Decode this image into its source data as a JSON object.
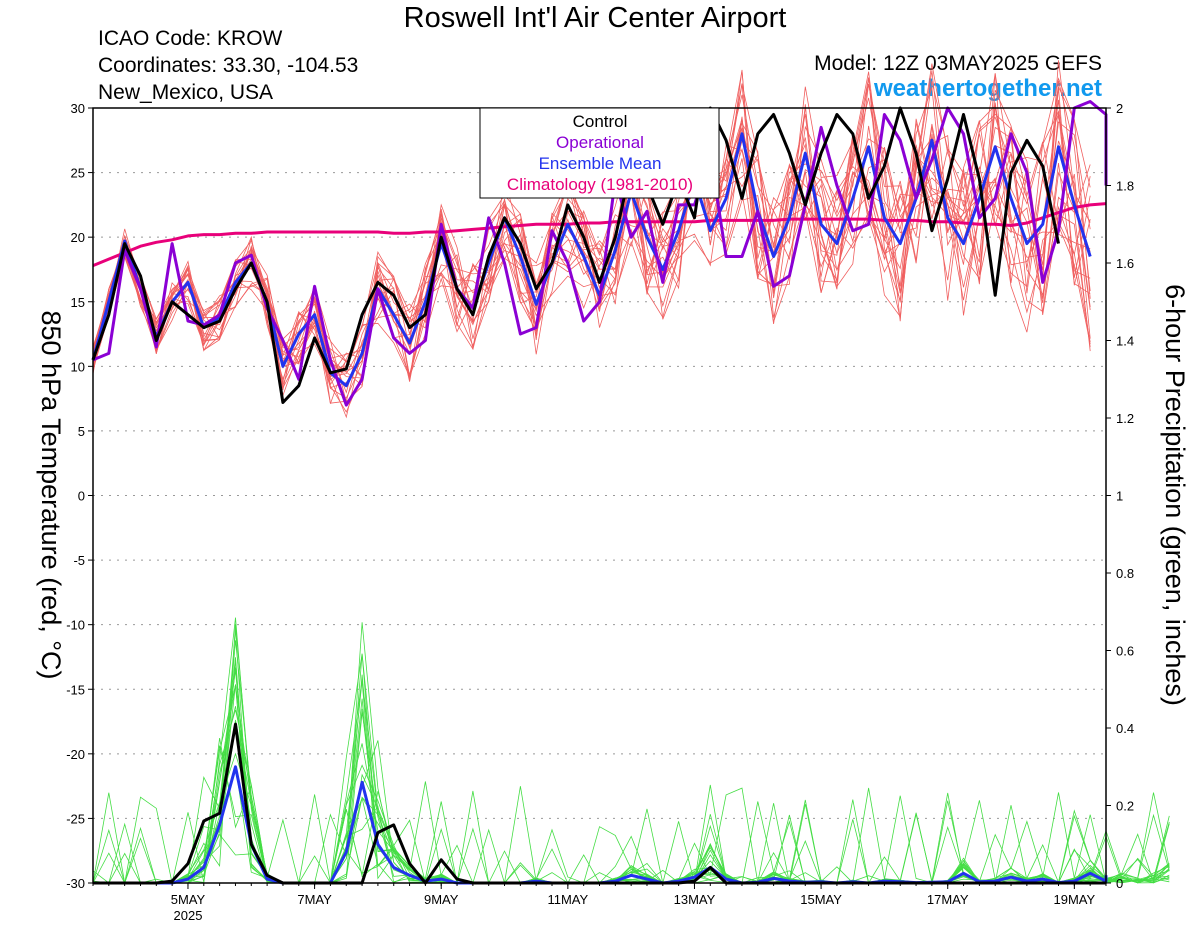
{
  "header": {
    "title": "Roswell Int'l Air Center Airport",
    "icao": "ICAO Code: KROW",
    "coordinates": "Coordinates: 33.30, -104.53",
    "region": "New_Mexico, USA",
    "model": "Model: 12Z 03MAY2025 GEFS",
    "site": "weathertogether.net"
  },
  "chart_data": {
    "type": "line",
    "title": "Roswell Int'l Air Center Airport",
    "ylabel": "850 hPa Temperature (red, °C)",
    "y2label": "6-hour Precipitation (green, inches)",
    "ylim": [
      -30,
      30
    ],
    "y2lim": [
      0,
      2
    ],
    "yticks": [
      30,
      25,
      20,
      15,
      10,
      5,
      0,
      -5,
      -10,
      -15,
      -20,
      -25,
      -30
    ],
    "y2ticks": [
      "2",
      "1.8",
      "1.6",
      "1.4",
      "1.2",
      "1",
      "0.8",
      "0.6",
      "0.4",
      "0.2",
      "0"
    ],
    "xlim": [
      3.5,
      19.5
    ],
    "xticks": [
      {
        "x": 5,
        "label": "5MAY",
        "sublabel": "2025"
      },
      {
        "x": 7,
        "label": "7MAY",
        "sublabel": ""
      },
      {
        "x": 9,
        "label": "9MAY",
        "sublabel": ""
      },
      {
        "x": 11,
        "label": "11MAY",
        "sublabel": ""
      },
      {
        "x": 13,
        "label": "13MAY",
        "sublabel": ""
      },
      {
        "x": 15,
        "label": "15MAY",
        "sublabel": ""
      },
      {
        "x": 17,
        "label": "17MAY",
        "sublabel": ""
      },
      {
        "x": 19,
        "label": "19MAY",
        "sublabel": ""
      }
    ],
    "grid": "horizontal dotted",
    "legend_position": "top-center",
    "legend": [
      {
        "label": "Control",
        "color": "#000000"
      },
      {
        "label": "Operational",
        "color": "#8a00d4"
      },
      {
        "label": "Ensemble Mean",
        "color": "#2233ee"
      },
      {
        "label": "Climatology (1981-2010)",
        "color": "#e8007a"
      }
    ],
    "series": [
      {
        "name": "Control",
        "axis": "temp",
        "color": "#000000",
        "width": 3,
        "values": [
          10.5,
          14,
          19.5,
          17,
          12,
          15,
          14,
          13,
          13.5,
          16,
          18,
          15,
          7.2,
          8.5,
          12.2,
          9.5,
          9.8,
          14,
          16.5,
          15.5,
          13,
          14,
          20,
          16,
          14,
          18.5,
          21.5,
          19.5,
          16,
          18,
          22.5,
          20,
          16.5,
          20,
          25.5,
          24,
          21,
          24.5,
          21.5,
          30,
          27.5,
          23,
          28,
          29.5,
          26.5,
          22.5,
          26.5,
          29.5,
          28,
          23,
          25.5,
          30,
          26.5,
          20.5,
          24.5,
          29.5,
          24.5,
          15.5,
          25,
          27.5,
          25.5,
          19.5
        ]
      },
      {
        "name": "Operational",
        "axis": "temp",
        "color": "#8a00d4",
        "width": 3,
        "values": [
          10.5,
          11,
          19,
          16,
          11.5,
          19.5,
          13.5,
          13.2,
          14,
          18,
          18.6,
          14.5,
          12,
          9,
          16.2,
          10.5,
          7,
          9,
          16,
          12.2,
          11,
          12,
          21,
          16,
          14.5,
          21.5,
          18,
          12.5,
          13,
          20.5,
          18,
          13.5,
          15,
          24.5,
          20,
          22,
          16.5,
          22.5,
          22.5,
          26.5,
          18.5,
          18.5,
          22,
          16.2,
          17,
          22.5,
          28.5,
          24,
          20.5,
          21,
          29.5,
          27.5,
          23,
          26,
          30,
          28,
          21.5,
          23,
          28,
          25,
          16.5,
          20.5,
          30,
          30.5,
          29.5,
          24
        ]
      },
      {
        "name": "Ensemble Mean",
        "axis": "temp",
        "color": "#2233ee",
        "width": 3,
        "values": [
          10.5,
          15,
          19.7,
          16,
          12.3,
          15,
          16.5,
          13,
          13.8,
          16.5,
          18,
          15,
          10,
          12.5,
          14,
          9.5,
          8.5,
          11,
          16,
          14,
          11.8,
          15,
          19.5,
          16,
          14.5,
          18,
          21.5,
          18.5,
          14.8,
          18,
          21,
          18.5,
          15.5,
          19,
          23.5,
          20,
          17.5,
          20.5,
          24.5,
          20.5,
          23,
          28,
          22,
          18.5,
          21.5,
          26.5,
          21,
          19.5,
          23,
          27,
          21.5,
          19.5,
          23,
          27.5,
          21.5,
          19.5,
          23,
          27,
          23,
          19.5,
          21,
          27,
          22.5,
          18.5
        ]
      },
      {
        "name": "Climatology (1981-2010)",
        "axis": "temp",
        "color": "#e8007a",
        "width": 3,
        "x_start": 3.5,
        "x_step": 0.25,
        "values": [
          17.8,
          18.3,
          18.8,
          19.3,
          19.6,
          19.8,
          20.1,
          20.2,
          20.2,
          20.3,
          20.3,
          20.4,
          20.4,
          20.4,
          20.4,
          20.4,
          20.4,
          20.4,
          20.4,
          20.3,
          20.3,
          20.4,
          20.4,
          20.5,
          20.6,
          20.7,
          20.8,
          20.9,
          21.0,
          21.0,
          21.0,
          21.1,
          21.1,
          21.2,
          21.2,
          21.2,
          21.2,
          21.2,
          21.2,
          21.3,
          21.3,
          21.3,
          21.3,
          21.3,
          21.4,
          21.4,
          21.4,
          21.4,
          21.4,
          21.4,
          21.3,
          21.3,
          21.3,
          21.2,
          21.2,
          21.1,
          21.0,
          21.0,
          20.9,
          21.1,
          21.5,
          21.9,
          22.3,
          22.5,
          22.6
        ]
      },
      {
        "name": "Control",
        "axis": "precip",
        "color": "#000000",
        "width": 3,
        "values": [
          0,
          0,
          0,
          0,
          0,
          0.005,
          0.05,
          0.16,
          0.18,
          0.41,
          0.1,
          0.02,
          0,
          0,
          0,
          0,
          0,
          0,
          0.13,
          0.15,
          0.05,
          0,
          0.06,
          0.01,
          0,
          0,
          0,
          0,
          0,
          0,
          0,
          0,
          0,
          0,
          0,
          0,
          0,
          0,
          0.005,
          0.04,
          0,
          0,
          0,
          0,
          0,
          0,
          0,
          0,
          0,
          0,
          0,
          0,
          0,
          0,
          0,
          0,
          0,
          0,
          0,
          0,
          0,
          0,
          0,
          0,
          0,
          0
        ]
      },
      {
        "name": "Ensemble Mean",
        "axis": "precip",
        "color": "#2233ee",
        "width": 3,
        "values": [
          0,
          0,
          0,
          0,
          0,
          0,
          0.01,
          0.04,
          0.15,
          0.3,
          0.1,
          0.01,
          0,
          0,
          0,
          0,
          0.08,
          0.26,
          0.1,
          0.04,
          0.02,
          0.005,
          0.01,
          0,
          0,
          0,
          0,
          0,
          0.005,
          0,
          0,
          0,
          0,
          0.005,
          0.02,
          0.01,
          0,
          0.005,
          0.015,
          0.04,
          0.01,
          0,
          0.002,
          0.012,
          0.005,
          0.002,
          0.003,
          0,
          0.003,
          0,
          0.005,
          0.003,
          0.001,
          0.002,
          0.003,
          0.025,
          0.003,
          0.005,
          0.015,
          0.005,
          0.01,
          0.001,
          0.005,
          0.025,
          0.005,
          0.01,
          0.005,
          0.012,
          0.02
        ]
      }
    ]
  }
}
